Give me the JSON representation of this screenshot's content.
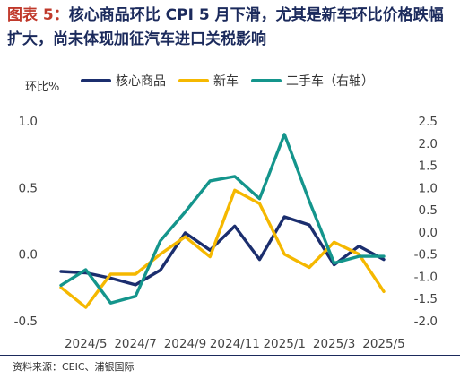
{
  "header": {
    "figure_label": "图表 5：",
    "title_text": "核心商品环比 CPI 5 月下滑，尤其是新车环比价格跌幅扩大，尚未体现加征汽车进口关税影响"
  },
  "footer": {
    "source": "资料来源：CEIC、浦银国际"
  },
  "chart_data": {
    "type": "line",
    "ylabel_left": "环比%",
    "x": [
      "2024/4",
      "2024/5",
      "2024/6",
      "2024/7",
      "2024/8",
      "2024/9",
      "2024/10",
      "2024/11",
      "2024/12",
      "2025/1",
      "2025/2",
      "2025/3",
      "2025/4",
      "2025/5"
    ],
    "x_tick_labels": [
      {
        "index": 1,
        "label": "2024/5"
      },
      {
        "index": 3,
        "label": "2024/7"
      },
      {
        "index": 5,
        "label": "2024/9"
      },
      {
        "index": 7,
        "label": "2024/11"
      },
      {
        "index": 9,
        "label": "2025/1"
      },
      {
        "index": 11,
        "label": "2025/3"
      },
      {
        "index": 13,
        "label": "2025/5"
      }
    ],
    "ylim_left": [
      -0.5,
      1.0
    ],
    "yticks_left": [
      "1.0",
      "0.5",
      "0.0",
      "-0.5"
    ],
    "ytick_values_left": [
      1.0,
      0.5,
      0.0,
      -0.5
    ],
    "ylim_right": [
      -2.0,
      2.5
    ],
    "yticks_right": [
      "2.5",
      "2.0",
      "1.5",
      "1.0",
      "0.5",
      "0.0",
      "-0.5",
      "-1.0",
      "-1.5",
      "-2.0"
    ],
    "ytick_values_right": [
      2.5,
      2.0,
      1.5,
      1.0,
      0.5,
      0.0,
      -0.5,
      -1.0,
      -1.5,
      -2.0
    ],
    "series": [
      {
        "name": "核心商品",
        "axis": "left",
        "color": "#1b2e6e",
        "values": [
          -0.13,
          -0.14,
          -0.18,
          -0.23,
          -0.12,
          0.16,
          0.03,
          0.21,
          -0.04,
          0.28,
          0.22,
          -0.08,
          0.06,
          -0.04
        ]
      },
      {
        "name": "新车",
        "axis": "left",
        "color": "#f5b800",
        "values": [
          -0.25,
          -0.4,
          -0.15,
          -0.15,
          0.0,
          0.13,
          -0.02,
          0.48,
          0.38,
          0.0,
          -0.1,
          0.09,
          0.0,
          -0.28
        ]
      },
      {
        "name": "二手车（右轴）",
        "axis": "right",
        "color": "#14958c",
        "values": [
          -1.2,
          -0.85,
          -1.6,
          -1.45,
          -0.2,
          0.45,
          1.15,
          1.25,
          0.75,
          2.2,
          0.7,
          -0.7,
          -0.55,
          -0.55
        ]
      }
    ],
    "grid": false,
    "legend_position": "top"
  }
}
